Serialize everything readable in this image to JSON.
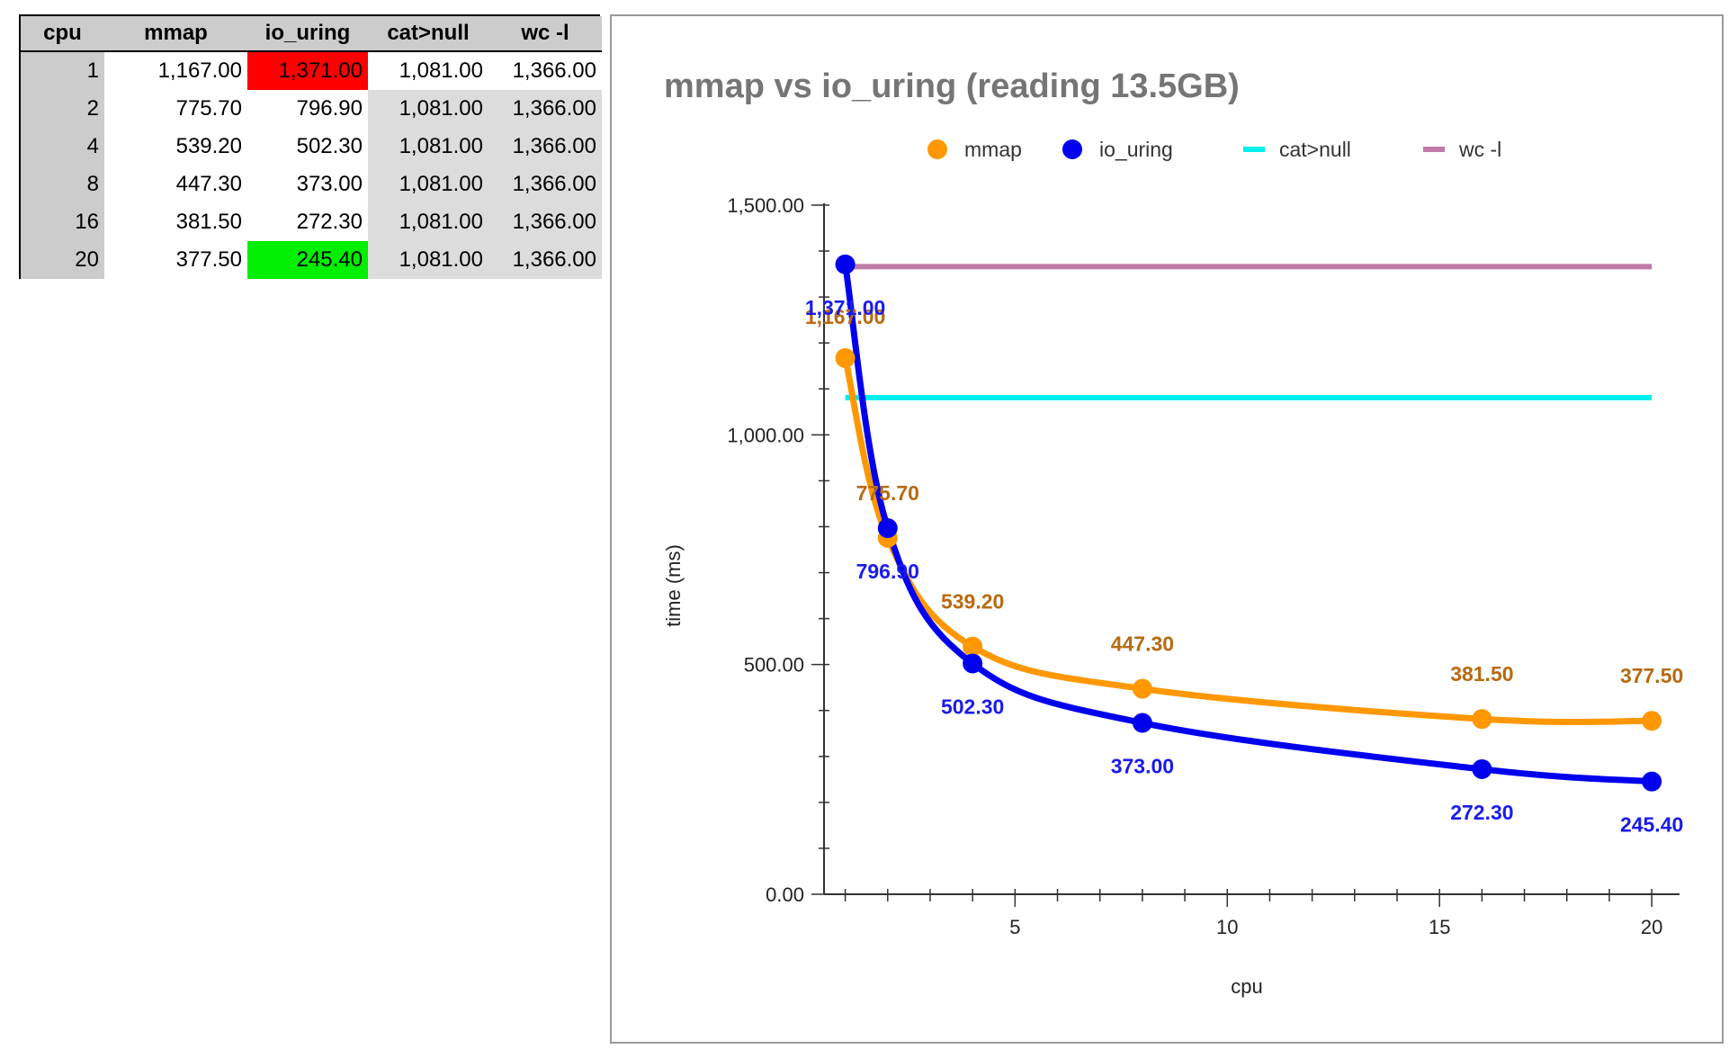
{
  "table": {
    "headers": [
      "cpu",
      "mmap",
      "io_uring",
      "cat>null",
      "wc -l"
    ],
    "rows": [
      [
        "1",
        "1,167.00",
        "1,371.00",
        "1,081.00",
        "1,366.00"
      ],
      [
        "2",
        "775.70",
        "796.90",
        "1,081.00",
        "1,366.00"
      ],
      [
        "4",
        "539.20",
        "502.30",
        "1,081.00",
        "1,366.00"
      ],
      [
        "8",
        "447.30",
        "373.00",
        "1,081.00",
        "1,366.00"
      ],
      [
        "16",
        "381.50",
        "272.30",
        "1,081.00",
        "1,366.00"
      ],
      [
        "20",
        "377.50",
        "245.40",
        "1,081.00",
        "1,366.00"
      ]
    ],
    "highlight_max_color": "#ff0000",
    "highlight_min_color": "#00ee00"
  },
  "chart_data": {
    "type": "line",
    "title": "mmap vs io_uring (reading 13.5GB)",
    "xlabel": "cpu",
    "ylabel": "time (ms)",
    "x": [
      1,
      2,
      4,
      8,
      16,
      20
    ],
    "xlim": [
      0.5,
      20.4
    ],
    "ylim": [
      0,
      1500
    ],
    "x_ticks": [
      "5",
      "10",
      "15",
      "20"
    ],
    "x_tick_values": [
      5,
      10,
      15,
      20
    ],
    "y_ticks": [
      "0.00",
      "500.00",
      "1,000.00",
      "1,500.00"
    ],
    "y_tick_values": [
      0,
      500,
      1000,
      1500
    ],
    "legend_position": "top",
    "series": [
      {
        "name": "mmap",
        "color": "#ff9800",
        "label_color": "#b86a10",
        "marker": "circle",
        "values": [
          1167,
          775.7,
          539.2,
          447.3,
          381.5,
          377.5
        ],
        "labels": [
          "1,167.00",
          "775.70",
          "539.20",
          "447.30",
          "381.50",
          "377.50"
        ]
      },
      {
        "name": "io_uring",
        "color": "#0000ee",
        "label_color": "#1a1aee",
        "marker": "circle",
        "values": [
          1371,
          796.9,
          502.3,
          373,
          272.3,
          245.4
        ],
        "labels": [
          "1,371.00",
          "796.90",
          "502.30",
          "373.00",
          "272.30",
          "245.40"
        ]
      },
      {
        "name": "cat>null",
        "color": "#00eeee",
        "marker": "line",
        "values": [
          1081,
          1081,
          1081,
          1081,
          1081,
          1081
        ]
      },
      {
        "name": "wc -l",
        "color": "#c07aa8",
        "marker": "line",
        "values": [
          1366,
          1366,
          1366,
          1366,
          1366,
          1366
        ]
      }
    ]
  }
}
